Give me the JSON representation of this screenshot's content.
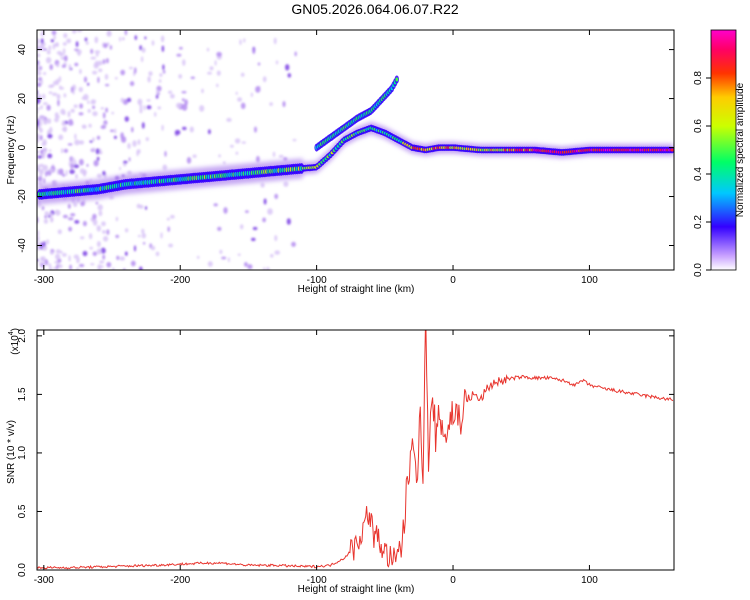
{
  "title": "GN05.2026.064.06.07.R22",
  "chart_data": [
    {
      "type": "heatmap",
      "xlabel": "Height of straight line (km)",
      "ylabel": "Frequency (Hz)",
      "xlim": [
        -305,
        162
      ],
      "ylim": [
        -50,
        48
      ],
      "xticks": [
        -300,
        -200,
        -100,
        0,
        100
      ],
      "yticks": [
        -40,
        -20,
        0,
        20,
        40
      ],
      "colorbar": {
        "label": "Normalized spectral amplitude",
        "range": [
          0,
          1
        ],
        "ticks": [
          0.0,
          0.2,
          0.4,
          0.6,
          0.8
        ],
        "colors": [
          "#ffffff",
          "#8a2be2",
          "#3300ff",
          "#00c8ff",
          "#00ff66",
          "#ffff00",
          "#ff6600",
          "#ff0000",
          "#ff00aa"
        ]
      },
      "ridge": [
        {
          "x": -300,
          "f": -19,
          "amp": 0.45
        },
        {
          "x": -280,
          "f": -18,
          "amp": 0.4
        },
        {
          "x": -260,
          "f": -17,
          "amp": 0.4
        },
        {
          "x": -240,
          "f": -15,
          "amp": 0.38
        },
        {
          "x": -220,
          "f": -14,
          "amp": 0.4
        },
        {
          "x": -200,
          "f": -13,
          "amp": 0.42
        },
        {
          "x": -180,
          "f": -12,
          "amp": 0.45
        },
        {
          "x": -160,
          "f": -11,
          "amp": 0.45
        },
        {
          "x": -140,
          "f": -10,
          "amp": 0.45
        },
        {
          "x": -120,
          "f": -9,
          "amp": 0.5
        },
        {
          "x": -100,
          "f": -8,
          "amp": 0.5
        },
        {
          "x": -90,
          "f": -3,
          "amp": 0.5
        },
        {
          "x": -80,
          "f": 3,
          "amp": 0.48
        },
        {
          "x": -70,
          "f": 6,
          "amp": 0.45
        },
        {
          "x": -60,
          "f": 8,
          "amp": 0.42
        },
        {
          "x": -50,
          "f": 6,
          "amp": 0.4
        },
        {
          "x": -40,
          "f": 3,
          "amp": 0.45
        },
        {
          "x": -30,
          "f": 0,
          "amp": 0.7
        },
        {
          "x": -20,
          "f": -1,
          "amp": 0.7
        },
        {
          "x": -10,
          "f": 0,
          "amp": 0.8
        },
        {
          "x": 0,
          "f": 0,
          "amp": 0.7
        },
        {
          "x": 20,
          "f": -1,
          "amp": 0.6
        },
        {
          "x": 40,
          "f": -1,
          "amp": 0.7
        },
        {
          "x": 60,
          "f": -1,
          "amp": 0.85
        },
        {
          "x": 80,
          "f": -2,
          "amp": 0.9
        },
        {
          "x": 100,
          "f": -1,
          "amp": 0.9
        },
        {
          "x": 130,
          "f": -1,
          "amp": 0.9
        },
        {
          "x": 160,
          "f": -1,
          "amp": 0.9
        }
      ],
      "upper_branch": [
        {
          "x": -100,
          "f": 0
        },
        {
          "x": -90,
          "f": 4
        },
        {
          "x": -80,
          "f": 8
        },
        {
          "x": -70,
          "f": 12
        },
        {
          "x": -60,
          "f": 15
        },
        {
          "x": -55,
          "f": 18
        },
        {
          "x": -45,
          "f": 24
        },
        {
          "x": -40,
          "f": 29
        }
      ]
    },
    {
      "type": "line",
      "xlabel": "Height of straight line (km)",
      "ylabel": "SNR (10 * v/v)",
      "scale_label": "(x10",
      "scale_exp": "4",
      "xlim": [
        -305,
        162
      ],
      "ylim": [
        0,
        2.05
      ],
      "xticks": [
        -300,
        -200,
        -100,
        0,
        100
      ],
      "yticks": [
        0.0,
        0.5,
        1.0,
        1.5,
        2.0
      ],
      "series": [
        {
          "name": "SNR",
          "color": "#e8352e",
          "x": [
            -305,
            -280,
            -250,
            -220,
            -200,
            -180,
            -170,
            -150,
            -130,
            -110,
            -100,
            -90,
            -80,
            -72,
            -66,
            -62,
            -58,
            -54,
            -50,
            -46,
            -42,
            -38,
            -35,
            -32,
            -29,
            -26,
            -24,
            -22,
            -20,
            -18,
            -15,
            -12,
            -10,
            -8,
            -5,
            -2,
            0,
            5,
            10,
            15,
            20,
            25,
            30,
            40,
            50,
            60,
            70,
            80,
            85,
            90,
            95,
            100,
            110,
            120,
            140,
            162
          ],
          "y": [
            0.02,
            0.02,
            0.03,
            0.04,
            0.05,
            0.06,
            0.06,
            0.04,
            0.04,
            0.03,
            0.03,
            0.04,
            0.1,
            0.2,
            0.35,
            0.5,
            0.3,
            0.25,
            0.15,
            0.1,
            0.06,
            0.2,
            0.5,
            0.9,
            1.2,
            0.8,
            1.3,
            0.9,
            2.05,
            1.0,
            1.4,
            1.1,
            1.3,
            1.25,
            1.15,
            1.3,
            1.35,
            1.3,
            1.45,
            1.5,
            1.45,
            1.55,
            1.6,
            1.63,
            1.65,
            1.64,
            1.64,
            1.62,
            1.6,
            1.58,
            1.62,
            1.58,
            1.55,
            1.53,
            1.49,
            1.45
          ]
        }
      ]
    }
  ]
}
